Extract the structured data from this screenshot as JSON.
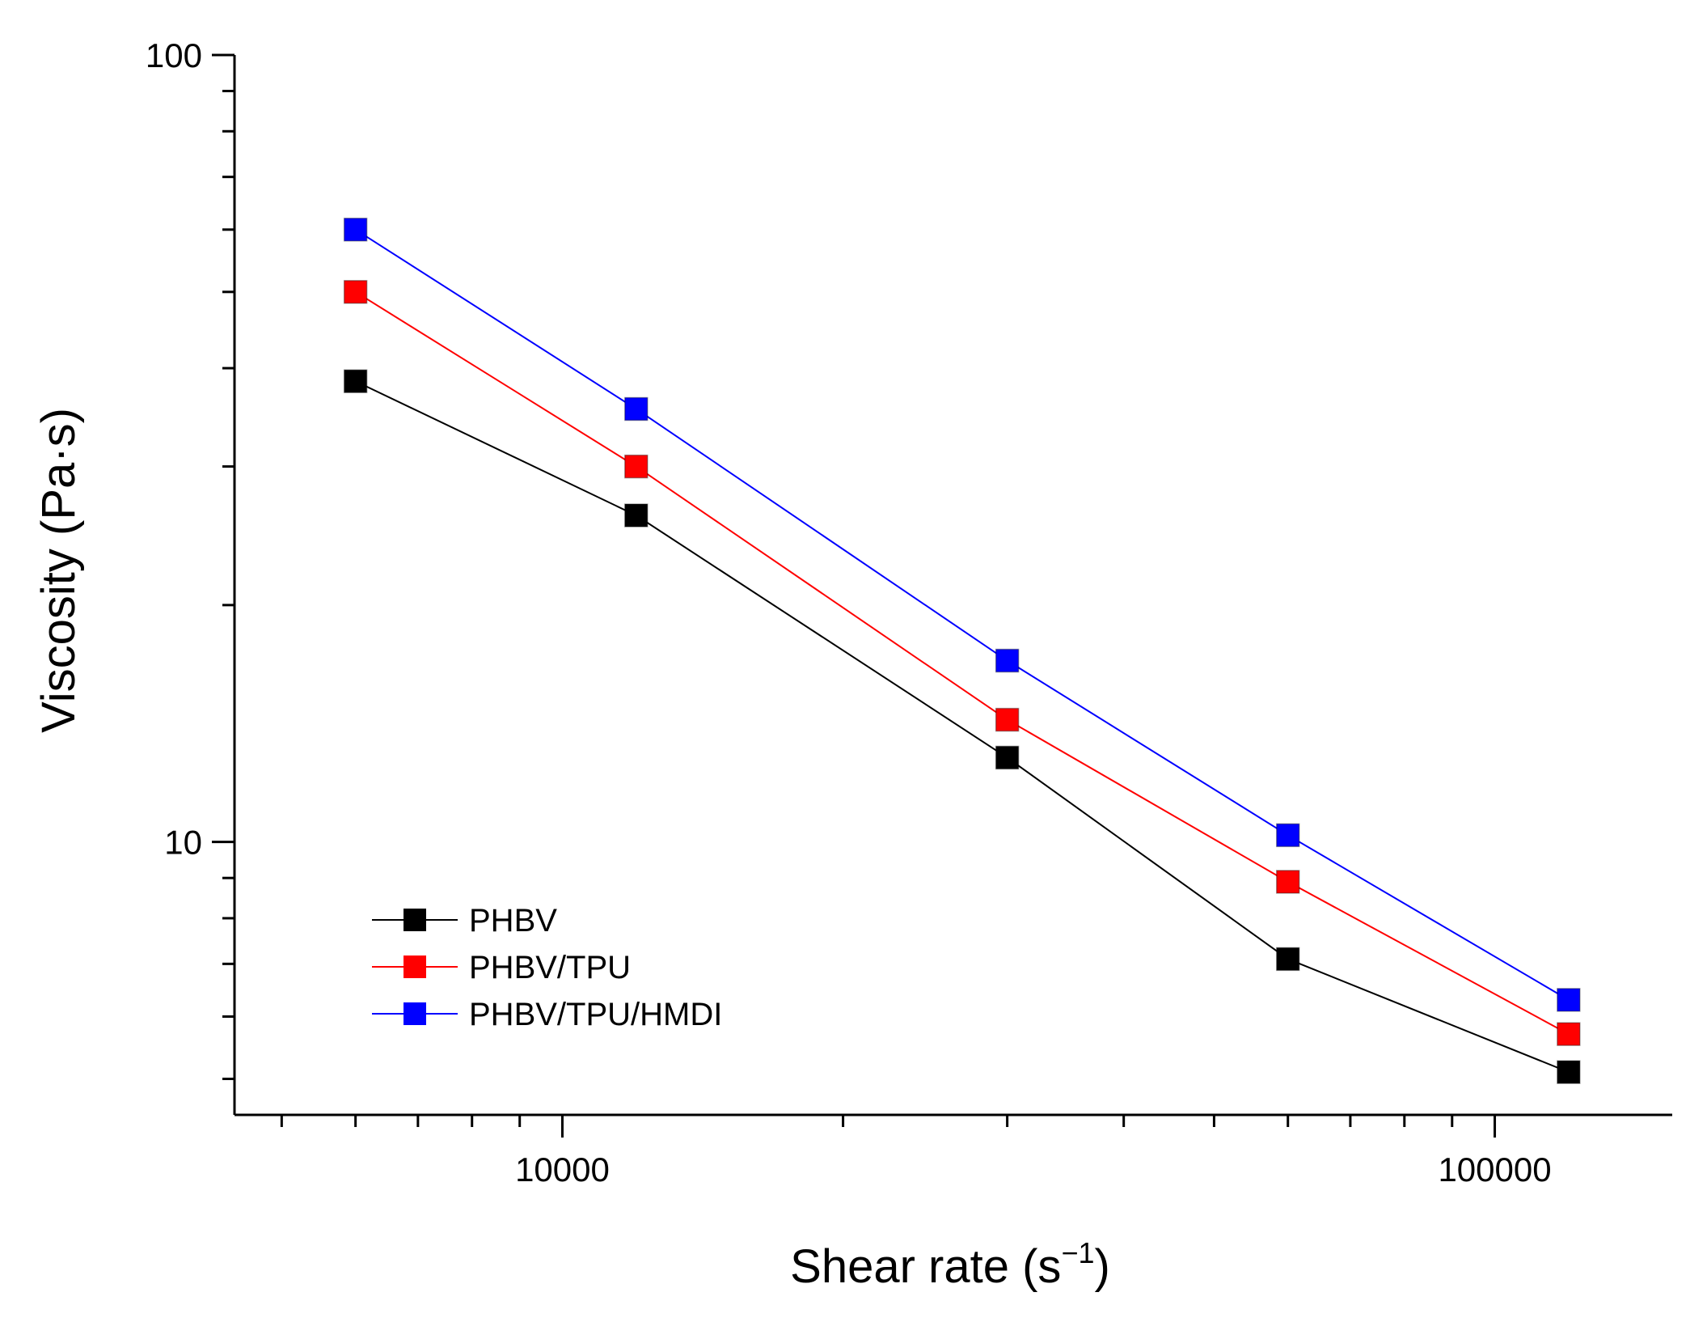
{
  "chart_data": {
    "type": "line",
    "xlabel": "Shear rate (s",
    "xlabel_sup": "−1",
    "xlabel_close": ")",
    "ylabel": "Viscosity (Pa·s)",
    "x_scale": "log",
    "y_scale": "log",
    "xlim": [
      4450,
      155000
    ],
    "ylim": [
      4.5,
      100
    ],
    "x_ticks": [
      {
        "value": 10000,
        "label": "10000"
      },
      {
        "value": 100000,
        "label": "100000"
      }
    ],
    "y_ticks": [
      {
        "value": 10,
        "label": "10"
      },
      {
        "value": 100,
        "label": "100"
      }
    ],
    "grid": false,
    "legend_position": "bottom-left",
    "x": [
      6000,
      12000,
      30000,
      60000,
      120000
    ],
    "series": [
      {
        "name": "PHBV",
        "color": "#000000",
        "values": [
          38.5,
          26.0,
          12.8,
          7.1,
          5.1
        ]
      },
      {
        "name": "PHBV/TPU",
        "color": "#ff0000",
        "values": [
          50.0,
          30.0,
          14.3,
          8.9,
          5.7
        ]
      },
      {
        "name": "PHBV/TPU/HMDI",
        "color": "#0000ff",
        "values": [
          60.0,
          35.5,
          17.0,
          10.2,
          6.3
        ]
      }
    ]
  }
}
